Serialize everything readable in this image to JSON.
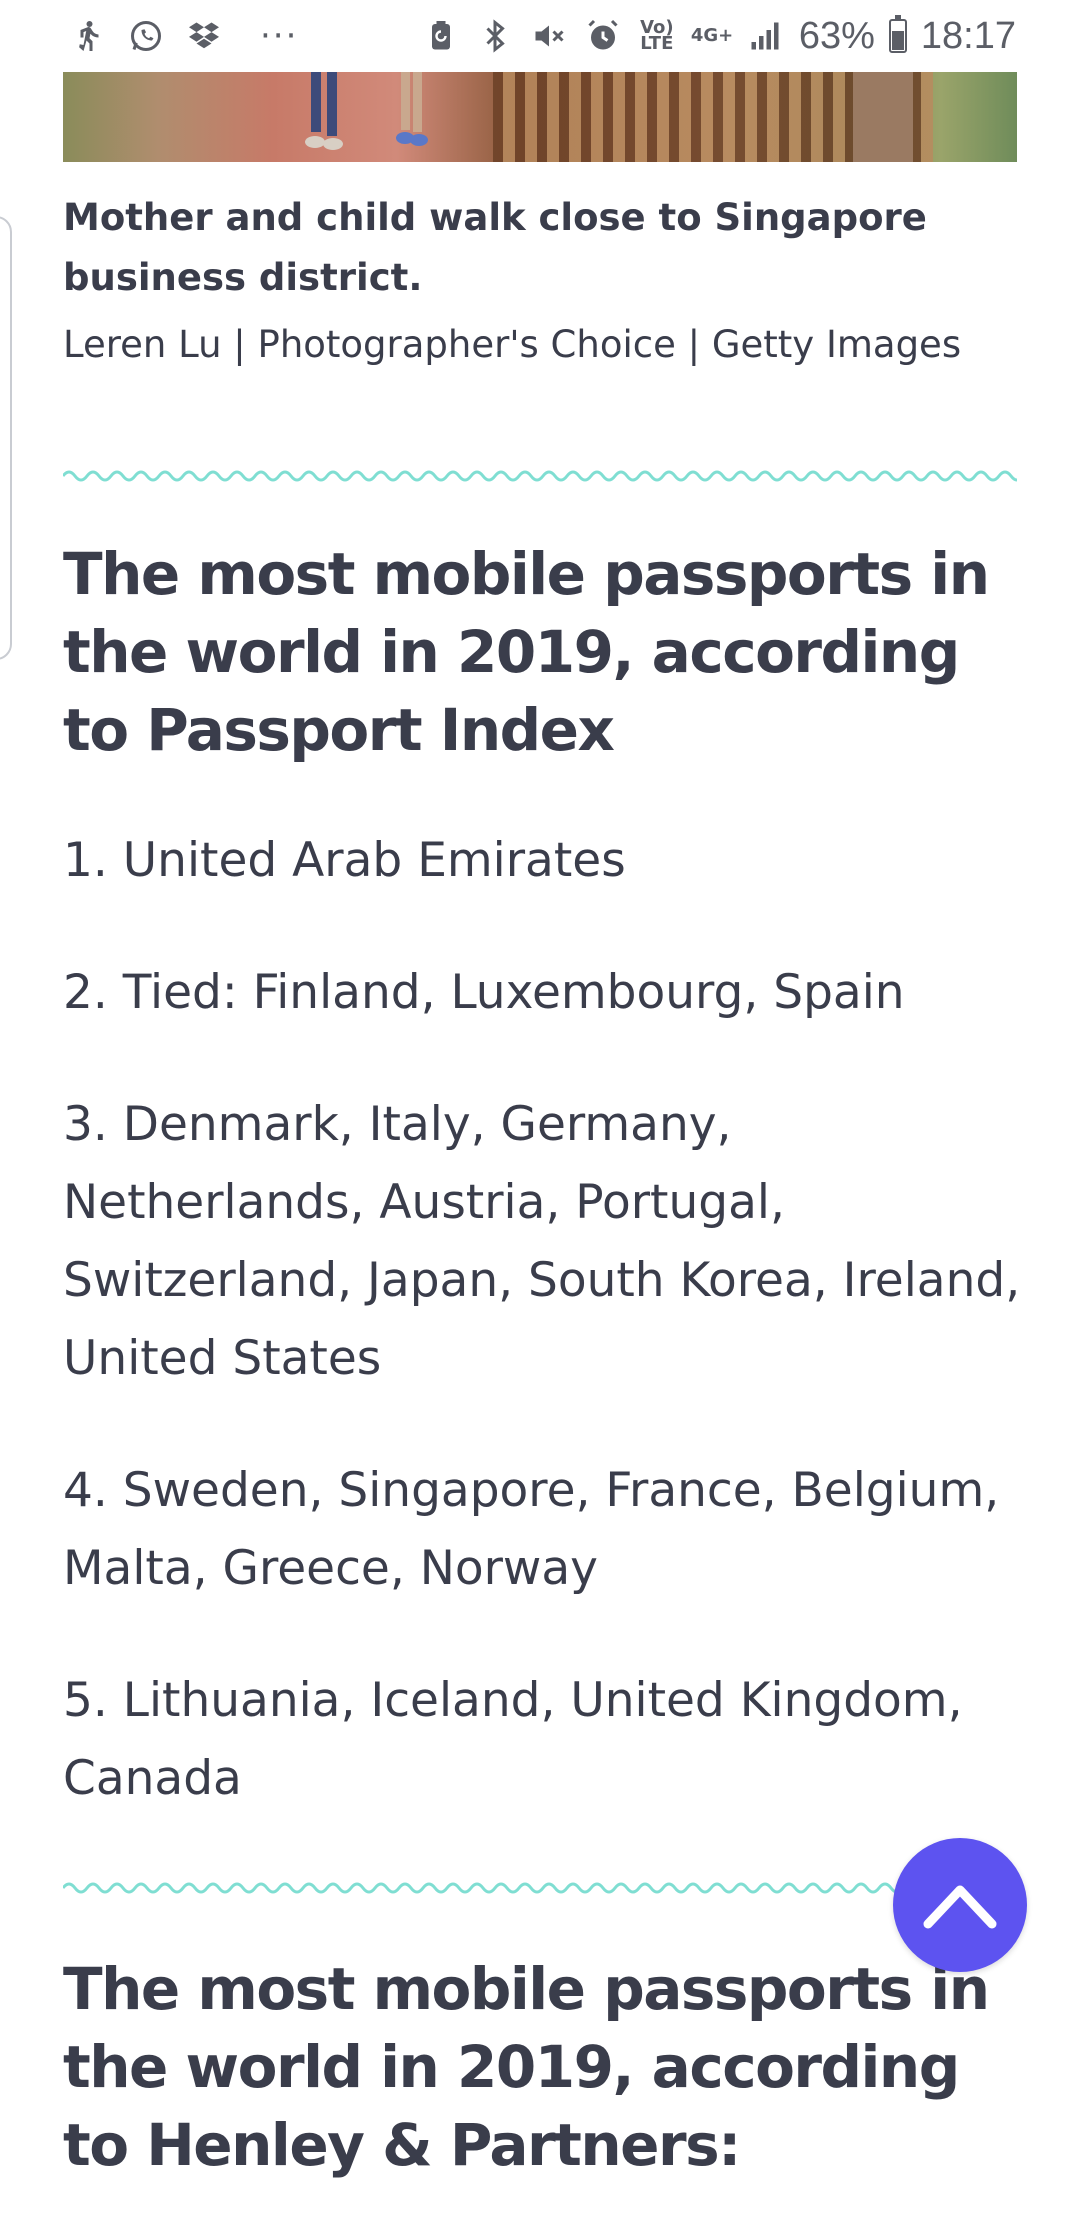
{
  "status_bar": {
    "battery_percent": "63%",
    "battery_level": 0.63,
    "time": "18:17",
    "network_volte_line1": "Vo)",
    "network_volte_line2": "LTE",
    "network_4g": "4G+",
    "more_dots": "···",
    "icons_left": [
      "walking-icon",
      "whatsapp-icon",
      "dropbox-icon"
    ],
    "icons_right": [
      "battery-saver-icon",
      "bluetooth-icon",
      "mute-icon",
      "alarm-icon",
      "volte-icon",
      "4g-icon",
      "signal-icon",
      "battery-icon"
    ]
  },
  "article": {
    "caption": {
      "title": "Mother and child walk close to Singapore business district.",
      "credit": "Leren Lu | Photographer's Choice | Getty Images"
    },
    "section1": {
      "heading": "The most mobile passports in the world in 2019, according to Passport Index",
      "items": [
        "1. United Arab Emirates",
        "2. Tied: Finland, Luxembourg, Spain",
        "3. Denmark, Italy, Germany, Netherlands, Austria, Portugal, Switzerland, Japan, South Korea, Ireland, United States",
        "4. Sweden, Singapore, France, Belgium, Malta, Greece, Norway",
        "5. Lithuania, Iceland, United Kingdom, Canada"
      ]
    },
    "section2": {
      "heading": "The most mobile passports in the world in 2019, according to Henley & Partners:"
    }
  },
  "colors": {
    "text": "#3a3d4b",
    "wave": "#7fded2",
    "fab": "#5d53f0"
  }
}
